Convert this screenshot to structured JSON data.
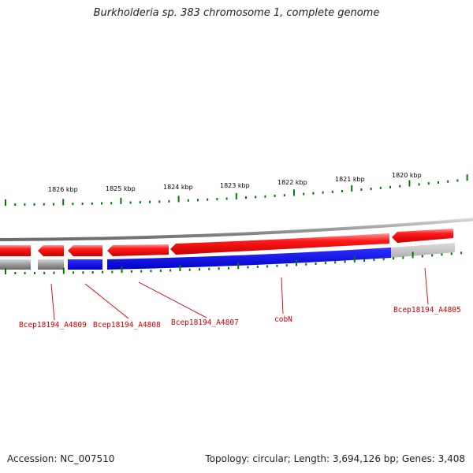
{
  "title": "Burkholderia sp. 383 chromosome 1, complete genome",
  "ticks": {
    "labels": [
      "1826 kbp",
      "1825 kbp",
      "1824 kbp",
      "1823 kbp",
      "1822 kbp",
      "1821 kbp",
      "1820 kbp"
    ],
    "color": "#007a00"
  },
  "colors": {
    "forward_gene": "#e81010",
    "reverse_gene": "#1010e0",
    "backbone": "#7a7a7a",
    "label": "#cc0000"
  },
  "genes": [
    {
      "label": "Bcep18194_A4809",
      "strand": "forward",
      "kind": "other"
    },
    {
      "label": "Bcep18194_A4808",
      "strand": "forward",
      "kind": "other"
    },
    {
      "label": "Bcep18194_A4807",
      "strand": "forward",
      "kind": "other"
    },
    {
      "label": "cobN",
      "strand": "forward",
      "kind": "other"
    },
    {
      "label": "Bcep18194_A4805",
      "strand": "forward",
      "kind": "other"
    }
  ],
  "footer": {
    "accession": "Accession: NC_007510",
    "summary": "Topology: circular; Length: 3,694,126 bp; Genes: 3,408"
  }
}
